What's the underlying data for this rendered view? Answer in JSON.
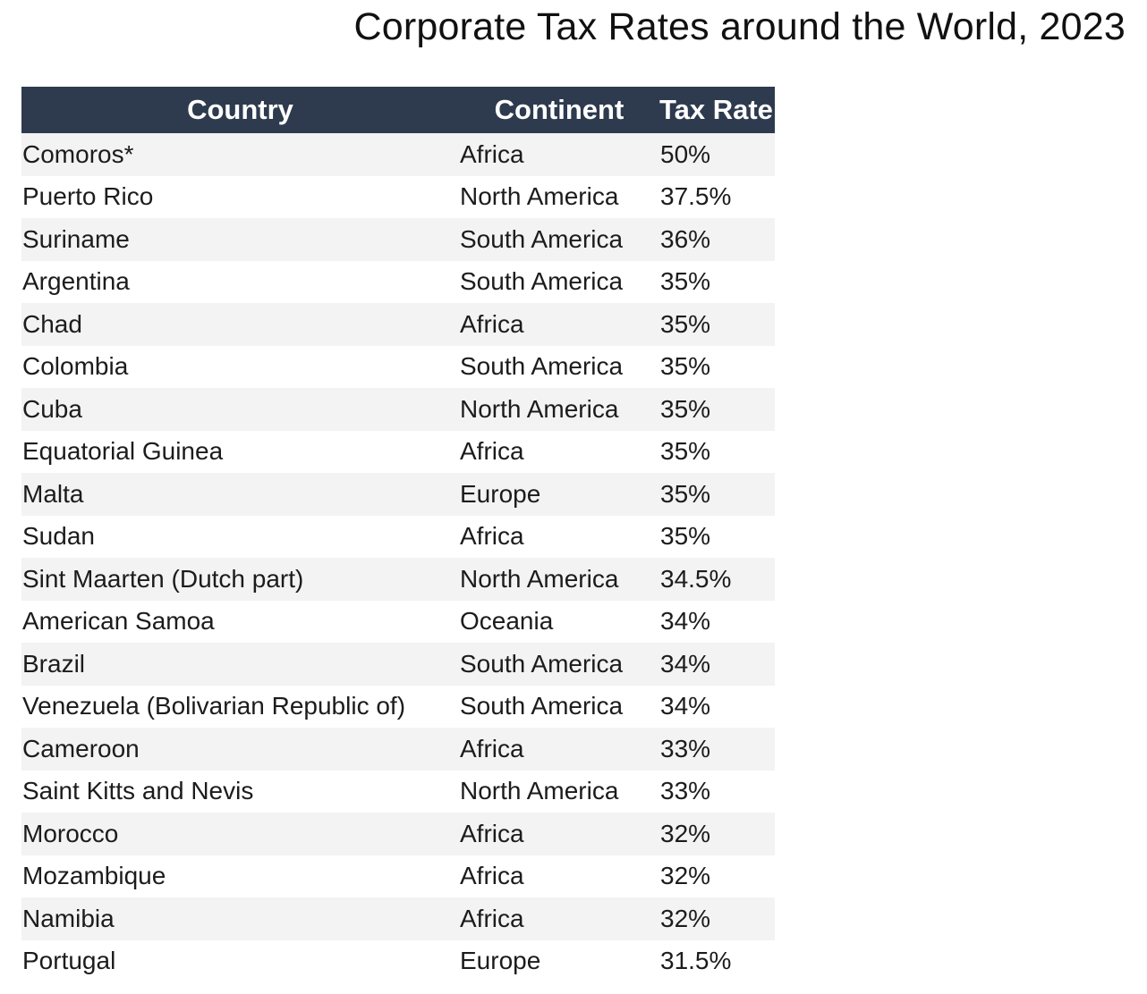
{
  "title": "Corporate Tax Rates around the World, 2023",
  "columns": {
    "country": "Country",
    "continent": "Continent",
    "rate": "Tax Rate"
  },
  "colors": {
    "header_background": "#2e3a4e",
    "header_text": "#ffffff",
    "stripe": "#f3f3f3"
  },
  "rows": [
    {
      "country": "Comoros*",
      "continent": "Africa",
      "rate": "50%"
    },
    {
      "country": "Puerto Rico",
      "continent": "North America",
      "rate": "37.5%"
    },
    {
      "country": "Suriname",
      "continent": "South America",
      "rate": "36%"
    },
    {
      "country": "Argentina",
      "continent": "South America",
      "rate": "35%"
    },
    {
      "country": "Chad",
      "continent": "Africa",
      "rate": "35%"
    },
    {
      "country": "Colombia",
      "continent": "South America",
      "rate": "35%"
    },
    {
      "country": "Cuba",
      "continent": "North America",
      "rate": "35%"
    },
    {
      "country": "Equatorial Guinea",
      "continent": "Africa",
      "rate": "35%"
    },
    {
      "country": "Malta",
      "continent": "Europe",
      "rate": "35%"
    },
    {
      "country": "Sudan",
      "continent": "Africa",
      "rate": "35%"
    },
    {
      "country": "Sint Maarten (Dutch part)",
      "continent": "North America",
      "rate": "34.5%"
    },
    {
      "country": "American Samoa",
      "continent": "Oceania",
      "rate": "34%"
    },
    {
      "country": "Brazil",
      "continent": "South America",
      "rate": "34%"
    },
    {
      "country": "Venezuela (Bolivarian Republic of)",
      "continent": "South America",
      "rate": "34%"
    },
    {
      "country": "Cameroon",
      "continent": "Africa",
      "rate": "33%"
    },
    {
      "country": "Saint Kitts and Nevis",
      "continent": "North America",
      "rate": "33%"
    },
    {
      "country": "Morocco",
      "continent": "Africa",
      "rate": "32%"
    },
    {
      "country": "Mozambique",
      "continent": "Africa",
      "rate": "32%"
    },
    {
      "country": "Namibia",
      "continent": "Africa",
      "rate": "32%"
    },
    {
      "country": "Portugal",
      "continent": "Europe",
      "rate": "31.5%"
    }
  ]
}
